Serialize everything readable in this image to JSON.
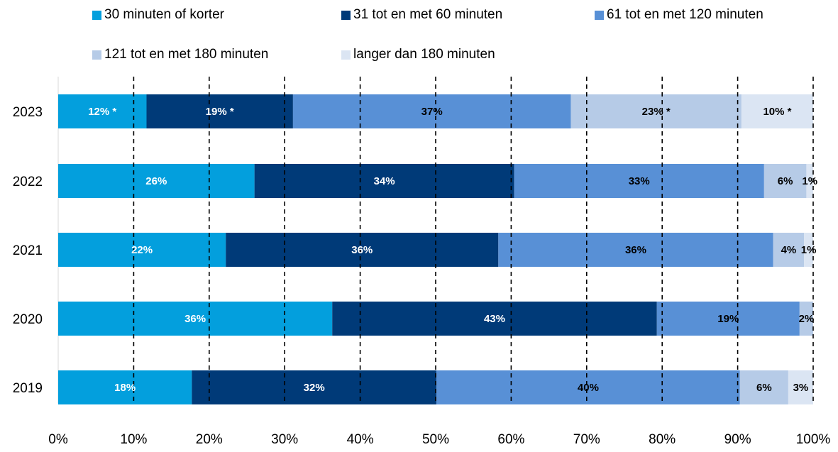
{
  "colors": {
    "series": [
      "#039fdd",
      "#003a78",
      "#5890d6",
      "#b6cbe7",
      "#dbe5f3"
    ],
    "label_light": "#ffffff",
    "label_dark": "#000000",
    "gridline": "#000000"
  },
  "chart_data": {
    "type": "bar",
    "orientation": "horizontal",
    "stacked": true,
    "categories": [
      "2023",
      "2022",
      "2021",
      "2020",
      "2019"
    ],
    "series": [
      {
        "name": "30 minuten of korter",
        "values": [
          11.7,
          26.0,
          22.2,
          36.3,
          17.7
        ],
        "labels": [
          "12% *",
          "26%",
          "22%",
          "36%",
          "18%"
        ]
      },
      {
        "name": "31 tot en met 60 minuten",
        "values": [
          19.4,
          34.4,
          36.1,
          43.0,
          32.4
        ],
        "labels": [
          "19% *",
          "34%",
          "36%",
          "43%",
          "32%"
        ]
      },
      {
        "name": "61 tot en met 120 minuten",
        "values": [
          36.8,
          33.1,
          36.4,
          18.9,
          40.2
        ],
        "labels": [
          "37%",
          "33%",
          "36%",
          "19%",
          "40%"
        ]
      },
      {
        "name": "121 tot en met 180 minuten",
        "values": [
          22.6,
          5.6,
          4.1,
          1.8,
          6.4
        ],
        "labels": [
          "23% *",
          "6%",
          "4%",
          "2%",
          "6%"
        ]
      },
      {
        "name": "langer dan 180 minuten",
        "values": [
          9.5,
          0.9,
          1.2,
          0.0,
          3.3
        ],
        "labels": [
          "10% *",
          "1%",
          "1%",
          "",
          "3%"
        ]
      }
    ],
    "xlim": [
      0,
      100
    ],
    "xticks": [
      "0%",
      "10%",
      "20%",
      "30%",
      "40%",
      "50%",
      "60%",
      "70%",
      "80%",
      "90%",
      "100%"
    ],
    "grid": "vertical dashed",
    "legend_position": "top"
  }
}
